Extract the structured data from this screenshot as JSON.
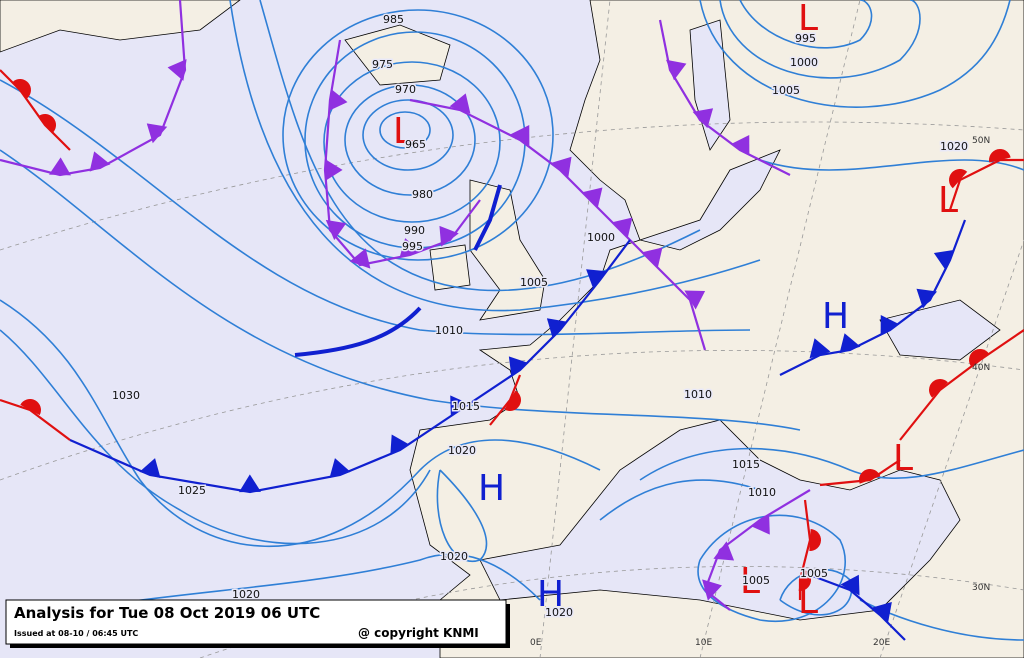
{
  "map": {
    "title": "Analysis for Tue 08 Oct 2019 06 UTC",
    "issued": "Issued at 08-10 / 06:45 UTC",
    "copyright": "@ copyright KNMI",
    "pressure_centers": [
      "L",
      "L",
      "L",
      "H",
      "H",
      "H",
      "L",
      "L",
      "L"
    ],
    "isobar_labels": [
      985,
      975,
      970,
      965,
      980,
      990,
      995,
      1000,
      1005,
      1010,
      1015,
      1020,
      1030,
      1025,
      1020,
      995,
      1000,
      1005,
      1020,
      1020,
      1010,
      1015,
      1010,
      1005,
      1005,
      1020
    ],
    "grid_labels": [
      "50N",
      "40N",
      "30N",
      "0E",
      "10E",
      "20E"
    ]
  }
}
